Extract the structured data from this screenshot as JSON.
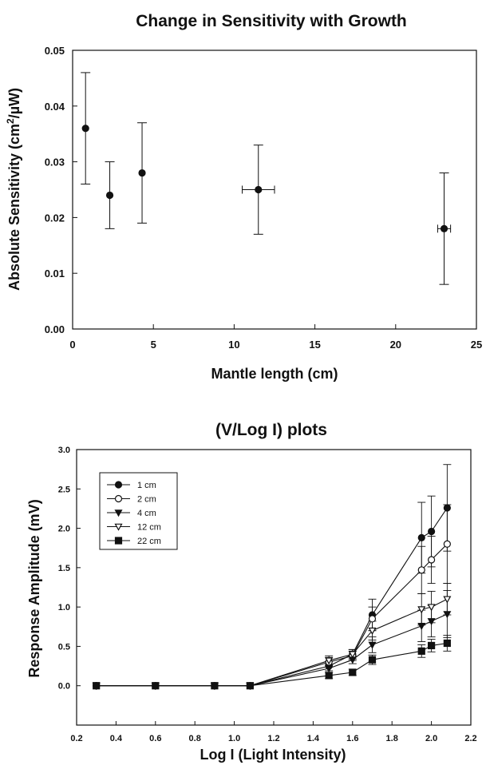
{
  "chart_data": [
    {
      "type": "scatter",
      "title": "Change in Sensitivity with Growth",
      "xlabel": "Mantle length (cm)",
      "ylabel_main": "Absolute Sensitivity (cm",
      "ylabel_sup": "2",
      "ylabel_tail": "/µW)",
      "xlim": [
        0,
        25
      ],
      "ylim": [
        0,
        0.05
      ],
      "x_ticks": [
        0,
        5,
        10,
        15,
        20,
        25
      ],
      "x_tick_labels": [
        "0",
        "5",
        "10",
        "15",
        "20",
        "25"
      ],
      "y_ticks": [
        0,
        0.01,
        0.02,
        0.03,
        0.04,
        0.05
      ],
      "y_tick_labels": [
        "0.00",
        "0.01",
        "0.02",
        "0.03",
        "0.04",
        "0.05"
      ],
      "grid": false,
      "points": [
        {
          "x": 0.8,
          "y": 0.036,
          "y_low": 0.026,
          "y_high": 0.046,
          "x_err": 0
        },
        {
          "x": 2.3,
          "y": 0.024,
          "y_low": 0.018,
          "y_high": 0.03,
          "x_err": 0
        },
        {
          "x": 4.3,
          "y": 0.028,
          "y_low": 0.019,
          "y_high": 0.037,
          "x_err": 0
        },
        {
          "x": 11.5,
          "y": 0.025,
          "y_low": 0.017,
          "y_high": 0.033,
          "x_err": 1.0
        },
        {
          "x": 23.0,
          "y": 0.018,
          "y_low": 0.008,
          "y_high": 0.028,
          "x_err": 0.4
        }
      ]
    },
    {
      "type": "line",
      "title": "(V/Log I) plots",
      "xlabel": "Log I  (Light Intensity)",
      "ylabel": "Response Amplitude (mV)",
      "xlim": [
        0.2,
        2.2
      ],
      "ylim": [
        -0.5,
        3.0
      ],
      "x_ticks": [
        0.2,
        0.4,
        0.6,
        0.8,
        1.0,
        1.2,
        1.4,
        1.6,
        1.8,
        2.0,
        2.2
      ],
      "x_tick_labels": [
        "0.2",
        "0.4",
        "0.6",
        "0.8",
        "1.0",
        "1.2",
        "1.4",
        "1.6",
        "1.8",
        "2.0",
        "2.2"
      ],
      "y_ticks": [
        0.0,
        0.5,
        1.0,
        1.5,
        2.0,
        2.5,
        3.0
      ],
      "y_tick_labels": [
        "0.0",
        "0.5",
        "1.0",
        "1.5",
        "2.0",
        "2.5",
        "3.0"
      ],
      "legend_position": "top-left",
      "grid": false,
      "x": [
        0.3,
        0.6,
        0.9,
        1.08,
        1.48,
        1.6,
        1.7,
        1.95,
        2.0,
        2.08
      ],
      "series": [
        {
          "name": "1 cm",
          "marker": "circle-filled",
          "values": [
            0,
            0,
            0,
            0,
            0.25,
            0.4,
            0.9,
            1.88,
            1.96,
            2.26
          ],
          "errors": [
            0,
            0,
            0,
            0,
            0.06,
            0.06,
            0.2,
            0.45,
            0.45,
            0.55
          ]
        },
        {
          "name": "2 cm",
          "marker": "circle-open",
          "values": [
            0,
            0,
            0,
            0,
            0.3,
            0.38,
            0.85,
            1.47,
            1.6,
            1.8
          ],
          "errors": [
            0,
            0,
            0,
            0,
            0.06,
            0.06,
            0.15,
            0.3,
            0.3,
            0.5
          ]
        },
        {
          "name": "4 cm",
          "marker": "triangle-down-filled",
          "values": [
            0,
            0,
            0,
            0,
            0.22,
            0.33,
            0.52,
            0.76,
            0.82,
            0.91
          ],
          "errors": [
            0,
            0,
            0,
            0,
            0.05,
            0.05,
            0.1,
            0.2,
            0.2,
            0.3
          ]
        },
        {
          "name": "12 cm",
          "marker": "triangle-down-open",
          "values": [
            0,
            0,
            0,
            0,
            0.32,
            0.4,
            0.7,
            0.97,
            1.0,
            1.1
          ],
          "errors": [
            0,
            0,
            0,
            0,
            0.06,
            0.06,
            0.12,
            0.2,
            0.2,
            0.2
          ]
        },
        {
          "name": "22 cm",
          "marker": "square-filled",
          "values": [
            0,
            0,
            0,
            0,
            0.13,
            0.17,
            0.33,
            0.44,
            0.51,
            0.54
          ],
          "errors": [
            0,
            0,
            0,
            0,
            0.04,
            0.04,
            0.06,
            0.08,
            0.08,
            0.1
          ]
        }
      ]
    }
  ]
}
